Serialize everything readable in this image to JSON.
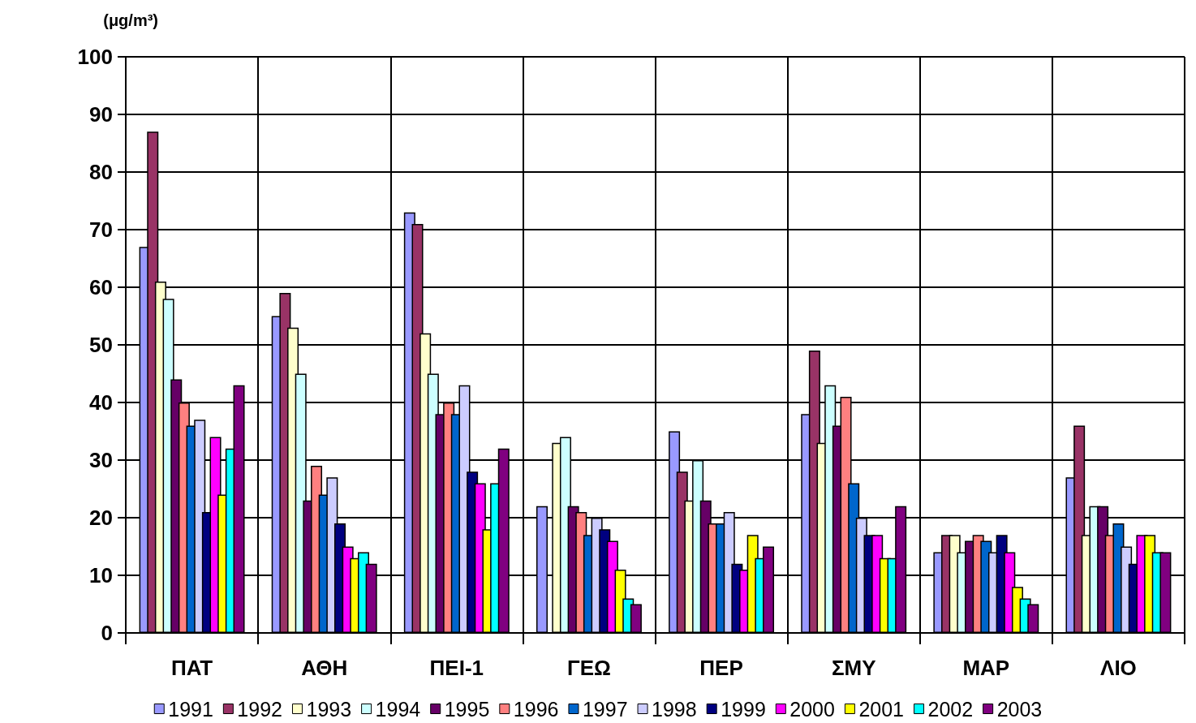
{
  "chart_data": {
    "type": "bar",
    "ylabel": "(μg/m³)",
    "categories": [
      "ΠΑΤ",
      "ΑΘΗ",
      "ΠΕΙ-1",
      "ΓΕΩ",
      "ΠΕΡ",
      "ΣΜΥ",
      "ΜΑΡ",
      "ΛΙΟ"
    ],
    "series": [
      {
        "name": "1991",
        "color": "#9999ff",
        "values": [
          67,
          55,
          73,
          22,
          35,
          38,
          14,
          27
        ]
      },
      {
        "name": "1992",
        "color": "#993366",
        "values": [
          87,
          59,
          71,
          null,
          28,
          49,
          17,
          36
        ]
      },
      {
        "name": "1993",
        "color": "#ffffcc",
        "values": [
          61,
          53,
          52,
          33,
          23,
          33,
          17,
          17
        ]
      },
      {
        "name": "1994",
        "color": "#ccffff",
        "values": [
          58,
          45,
          45,
          34,
          30,
          43,
          14,
          22
        ]
      },
      {
        "name": "1995",
        "color": "#660066",
        "values": [
          44,
          23,
          38,
          22,
          23,
          36,
          16,
          22
        ]
      },
      {
        "name": "1996",
        "color": "#ff8080",
        "values": [
          40,
          29,
          40,
          21,
          19,
          41,
          17,
          17
        ]
      },
      {
        "name": "1997",
        "color": "#0066cc",
        "values": [
          36,
          24,
          38,
          17,
          19,
          26,
          16,
          19
        ]
      },
      {
        "name": "1998",
        "color": "#ccccff",
        "values": [
          37,
          27,
          43,
          20,
          21,
          20,
          14,
          15
        ]
      },
      {
        "name": "1999",
        "color": "#000080",
        "values": [
          21,
          19,
          28,
          18,
          12,
          17,
          17,
          12
        ]
      },
      {
        "name": "2000",
        "color": "#ff00ff",
        "values": [
          34,
          15,
          26,
          16,
          11,
          17,
          14,
          17
        ]
      },
      {
        "name": "2001",
        "color": "#ffff00",
        "values": [
          24,
          13,
          18,
          11,
          17,
          13,
          8,
          17
        ]
      },
      {
        "name": "2002",
        "color": "#00ffff",
        "values": [
          32,
          14,
          26,
          6,
          13,
          13,
          6,
          14
        ]
      },
      {
        "name": "2003",
        "color": "#800080",
        "values": [
          43,
          12,
          32,
          5,
          15,
          22,
          5,
          14
        ]
      }
    ],
    "ylim": [
      0,
      100
    ],
    "yticks": [
      0,
      10,
      20,
      30,
      40,
      50,
      60,
      70,
      80,
      90,
      100
    ],
    "grid": true,
    "legend": "bottom"
  }
}
